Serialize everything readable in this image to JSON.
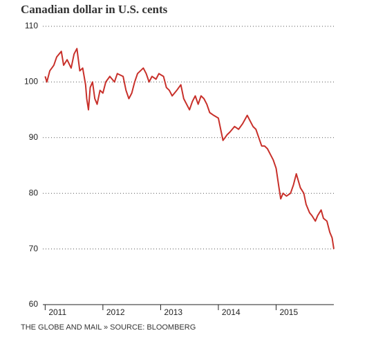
{
  "chart_data": {
    "type": "line",
    "title": "Canadian dollar in U.S. cents",
    "source": "THE GLOBE AND MAIL » SOURCE: BLOOMBERG",
    "x": [
      2011.0,
      2011.03,
      2011.08,
      2011.15,
      2011.2,
      2011.28,
      2011.32,
      2011.38,
      2011.45,
      2011.5,
      2011.55,
      2011.6,
      2011.65,
      2011.7,
      2011.72,
      2011.75,
      2011.78,
      2011.82,
      2011.86,
      2011.9,
      2011.95,
      2012.0,
      2012.05,
      2012.12,
      2012.2,
      2012.25,
      2012.35,
      2012.4,
      2012.45,
      2012.5,
      2012.55,
      2012.6,
      2012.7,
      2012.75,
      2012.8,
      2012.85,
      2012.92,
      2012.97,
      2013.05,
      2013.1,
      2013.15,
      2013.2,
      2013.28,
      2013.35,
      2013.4,
      2013.45,
      2013.5,
      2013.55,
      2013.6,
      2013.65,
      2013.7,
      2013.75,
      2013.8,
      2013.85,
      2013.92,
      2014.0,
      2014.05,
      2014.08,
      2014.15,
      2014.2,
      2014.28,
      2014.35,
      2014.42,
      2014.5,
      2014.55,
      2014.6,
      2014.65,
      2014.7,
      2014.75,
      2014.8,
      2014.85,
      2014.9,
      2014.95,
      2015.0,
      2015.05,
      2015.08,
      2015.12,
      2015.18,
      2015.25,
      2015.3,
      2015.35,
      2015.42,
      2015.48,
      2015.52,
      2015.58,
      2015.62,
      2015.68,
      2015.72,
      2015.78,
      2015.82,
      2015.88,
      2015.93,
      2015.97,
      2016.0
    ],
    "series": [
      {
        "name": "CAD",
        "color": "#c8302a",
        "values": [
          101,
          100,
          102,
          103,
          104.5,
          105.5,
          103,
          104,
          102.5,
          105,
          106,
          102,
          102.5,
          99.5,
          97,
          95,
          99,
          100,
          97,
          96,
          98.5,
          98,
          100,
          101,
          100,
          101.5,
          101,
          98.5,
          97,
          98,
          100,
          101.5,
          102.5,
          101.5,
          100,
          101,
          100.5,
          101.5,
          101,
          99,
          98.5,
          97.5,
          98.5,
          99.5,
          97,
          96,
          95,
          96.5,
          97.5,
          96,
          97.5,
          97,
          96,
          94.5,
          94,
          93.5,
          91,
          89.5,
          90.5,
          91,
          92,
          91.5,
          92.5,
          94,
          93,
          92,
          91.5,
          90,
          88.5,
          88.5,
          88,
          87,
          86,
          84.5,
          81,
          79,
          80,
          79.5,
          80,
          81.5,
          83.5,
          81,
          80,
          78,
          76.5,
          76,
          75,
          76,
          77,
          75.5,
          75,
          73,
          72,
          70
        ]
      }
    ],
    "xlim": [
      2010.96,
      2016.0
    ],
    "xticks": [
      2011,
      2012,
      2013,
      2014,
      2015
    ],
    "ylim": [
      60,
      110
    ],
    "yticks": [
      60,
      70,
      80,
      90,
      100,
      110
    ],
    "grid": true
  }
}
